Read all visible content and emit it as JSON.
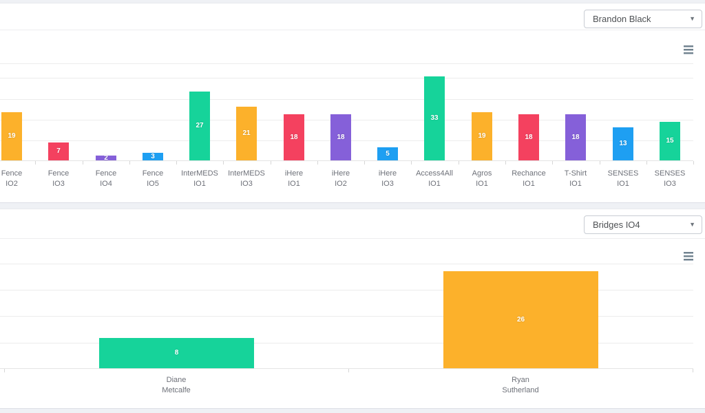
{
  "panel1": {
    "dropdown_value": "Brandon Black"
  },
  "panel2": {
    "dropdown_value": "Bridges IO4"
  },
  "colors": {
    "orange": "#FCB12B",
    "red": "#F4415F",
    "purple": "#8560D9",
    "blue": "#1E9FF2",
    "green": "#16D39A",
    "page_background": "#EFF1F5",
    "card_background": "#FFFFFF"
  },
  "chart_data": [
    {
      "type": "bar",
      "title": "",
      "xlabel": "",
      "ylabel": "",
      "categories": [
        "Fence IO2",
        "Fence IO3",
        "Fence IO4",
        "Fence IO5",
        "InterMEDS IO1",
        "InterMEDS IO3",
        "iHere IO1",
        "iHere IO2",
        "iHere IO3",
        "Access4All IO1",
        "Agros IO1",
        "Rechance IO1",
        "T-Shirt IO1",
        "SENSES IO1",
        "SENSES IO3"
      ],
      "values": [
        19,
        7,
        2,
        3,
        27,
        21,
        18,
        18,
        5,
        33,
        19,
        18,
        18,
        13,
        15
      ],
      "bar_colors": [
        "#FCB12B",
        "#F4415F",
        "#8560D9",
        "#1E9FF2",
        "#16D39A",
        "#FCB12B",
        "#F4415F",
        "#8560D9",
        "#1E9FF2",
        "#16D39A",
        "#FCB12B",
        "#F4415F",
        "#8560D9",
        "#1E9FF2",
        "#16D39A"
      ],
      "data_labels_visible": true,
      "grid": true,
      "legend": false,
      "yaxis_labels_visible": false
    },
    {
      "type": "bar",
      "title": "",
      "xlabel": "",
      "ylabel": "",
      "categories": [
        "Diane Metcalfe",
        "Ryan Sutherland"
      ],
      "values": [
        8,
        26
      ],
      "bar_colors": [
        "#16D39A",
        "#FCB12B"
      ],
      "data_labels_visible": true,
      "grid": true,
      "legend": false,
      "yaxis_labels_visible": false
    }
  ]
}
